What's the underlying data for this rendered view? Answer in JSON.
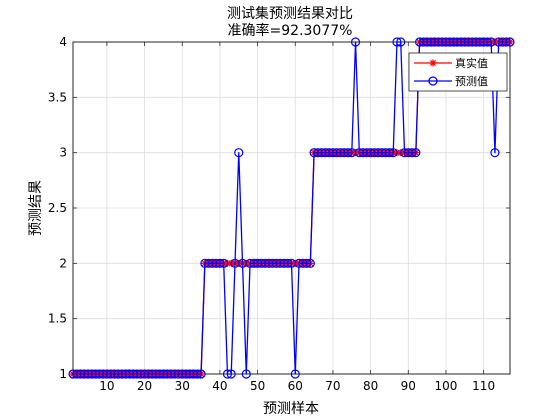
{
  "chart_data": {
    "type": "line",
    "title": "测试集预测结果对比",
    "subtitle": "准确率=92.3077%",
    "xlabel": "预测样本",
    "ylabel": "预测结果",
    "xlim": [
      1,
      117
    ],
    "ylim": [
      1,
      4
    ],
    "xticks": [
      "10",
      "20",
      "30",
      "40",
      "50",
      "60",
      "70",
      "80",
      "90",
      "100",
      "110"
    ],
    "yticks": [
      "1",
      "1.5",
      "2",
      "2.5",
      "3",
      "3.5",
      "4"
    ],
    "grid": true,
    "legend_position": "top-right",
    "x": [
      1,
      2,
      3,
      4,
      5,
      6,
      7,
      8,
      9,
      10,
      11,
      12,
      13,
      14,
      15,
      16,
      17,
      18,
      19,
      20,
      21,
      22,
      23,
      24,
      25,
      26,
      27,
      28,
      29,
      30,
      31,
      32,
      33,
      34,
      35,
      36,
      37,
      38,
      39,
      40,
      41,
      42,
      43,
      44,
      45,
      46,
      47,
      48,
      49,
      50,
      51,
      52,
      53,
      54,
      55,
      56,
      57,
      58,
      59,
      60,
      61,
      62,
      63,
      64,
      65,
      66,
      67,
      68,
      69,
      70,
      71,
      72,
      73,
      74,
      75,
      76,
      77,
      78,
      79,
      80,
      81,
      82,
      83,
      84,
      85,
      86,
      87,
      88,
      89,
      90,
      91,
      92,
      93,
      94,
      95,
      96,
      97,
      98,
      99,
      100,
      101,
      102,
      103,
      104,
      105,
      106,
      107,
      108,
      109,
      110,
      111,
      112,
      113,
      114,
      115,
      116,
      117
    ],
    "series": [
      {
        "name": "真实值",
        "color": "#ff0000",
        "marker": "asterisk",
        "values": [
          1,
          1,
          1,
          1,
          1,
          1,
          1,
          1,
          1,
          1,
          1,
          1,
          1,
          1,
          1,
          1,
          1,
          1,
          1,
          1,
          1,
          1,
          1,
          1,
          1,
          1,
          1,
          1,
          1,
          1,
          1,
          1,
          1,
          1,
          1,
          2,
          2,
          2,
          2,
          2,
          2,
          2,
          2,
          2,
          2,
          2,
          2,
          2,
          2,
          2,
          2,
          2,
          2,
          2,
          2,
          2,
          2,
          2,
          2,
          2,
          2,
          2,
          2,
          2,
          3,
          3,
          3,
          3,
          3,
          3,
          3,
          3,
          3,
          3,
          3,
          3,
          3,
          3,
          3,
          3,
          3,
          3,
          3,
          3,
          3,
          3,
          3,
          3,
          3,
          3,
          3,
          3,
          4,
          4,
          4,
          4,
          4,
          4,
          4,
          4,
          4,
          4,
          4,
          4,
          4,
          4,
          4,
          4,
          4,
          4,
          4,
          4,
          4,
          4,
          4,
          4,
          4
        ]
      },
      {
        "name": "预测值",
        "color": "#0000ff",
        "marker": "circle",
        "values": [
          1,
          1,
          1,
          1,
          1,
          1,
          1,
          1,
          1,
          1,
          1,
          1,
          1,
          1,
          1,
          1,
          1,
          1,
          1,
          1,
          1,
          1,
          1,
          1,
          1,
          1,
          1,
          1,
          1,
          1,
          1,
          1,
          1,
          1,
          1,
          2,
          2,
          2,
          2,
          2,
          2,
          1,
          1,
          2,
          3,
          2,
          1,
          2,
          2,
          2,
          2,
          2,
          2,
          2,
          2,
          2,
          2,
          2,
          2,
          1,
          2,
          2,
          2,
          2,
          3,
          3,
          3,
          3,
          3,
          3,
          3,
          3,
          3,
          3,
          3,
          4,
          3,
          3,
          3,
          3,
          3,
          3,
          3,
          3,
          3,
          3,
          4,
          4,
          3,
          3,
          3,
          3,
          4,
          4,
          4,
          4,
          4,
          4,
          4,
          4,
          4,
          4,
          4,
          4,
          4,
          4,
          4,
          4,
          4,
          4,
          4,
          4,
          3,
          4,
          4,
          4,
          4
        ]
      }
    ]
  }
}
